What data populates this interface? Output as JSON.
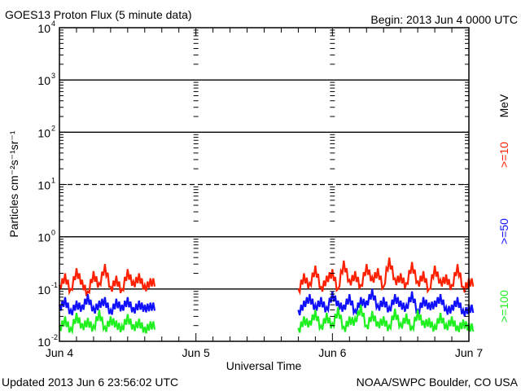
{
  "header": {
    "title": "GOES13 Proton Flux (5 minute data)",
    "begin": "Begin: 2013 Jun 4 0000 UTC"
  },
  "footer": {
    "updated": "Updated 2013 Jun  6 23:56:02 UTC",
    "source": "NOAA/SWPC Boulder, CO USA"
  },
  "chart_data": {
    "type": "line",
    "title": "GOES13 Proton Flux (5 minute data)",
    "xlabel": "Universal Time",
    "ylabel": "Particles cm⁻²s⁻¹sr⁻¹",
    "yscale": "log",
    "ylim": [
      0.01,
      10000
    ],
    "xlim_hours": [
      0,
      72
    ],
    "x_ticks": [
      "Jun 4",
      "Jun 5",
      "Jun 6",
      "Jun 7"
    ],
    "y_ticks": [
      {
        "base": "10",
        "exp": "4"
      },
      {
        "base": "10",
        "exp": "3"
      },
      {
        "base": "10",
        "exp": "2"
      },
      {
        "base": "10",
        "exp": "1"
      },
      {
        "base": "10",
        "exp": "0"
      },
      {
        "base": "10",
        "exp": "-1"
      },
      {
        "base": "10",
        "exp": "-2"
      }
    ],
    "units_label": "MeV",
    "series": [
      {
        "name": ">=10",
        "color": "#ff2000",
        "segments": [
          {
            "start_hour": 0,
            "values": [
              0.12,
              0.2,
              0.1,
              0.25,
              0.15,
              0.09,
              0.22,
              0.13,
              0.3,
              0.11,
              0.18,
              0.1,
              0.24,
              0.14,
              0.2,
              0.12,
              0.16
            ]
          },
          {
            "start_hour": 42,
            "values": [
              0.1,
              0.2,
              0.13,
              0.28,
              0.11,
              0.18,
              0.24,
              0.1,
              0.35,
              0.15,
              0.22,
              0.12,
              0.3,
              0.17,
              0.25,
              0.11,
              0.4,
              0.16,
              0.2,
              0.13,
              0.33,
              0.14,
              0.22,
              0.1,
              0.28,
              0.15,
              0.19,
              0.12,
              0.3,
              0.11,
              0.16
            ]
          }
        ]
      },
      {
        "name": ">=50",
        "color": "#1010ff",
        "segments": [
          {
            "start_hour": 0,
            "values": [
              0.05,
              0.07,
              0.04,
              0.06,
              0.05,
              0.08,
              0.045,
              0.06,
              0.07,
              0.04,
              0.065,
              0.05,
              0.07,
              0.045,
              0.06,
              0.05,
              0.055
            ]
          },
          {
            "start_hour": 42,
            "values": [
              0.04,
              0.06,
              0.08,
              0.05,
              0.07,
              0.045,
              0.09,
              0.06,
              0.05,
              0.08,
              0.04,
              0.07,
              0.06,
              0.1,
              0.05,
              0.07,
              0.045,
              0.08,
              0.06,
              0.05,
              0.09,
              0.04,
              0.07,
              0.055,
              0.06,
              0.08,
              0.045,
              0.05,
              0.07,
              0.04,
              0.05
            ]
          }
        ]
      },
      {
        "name": ">=100",
        "color": "#20f020",
        "segments": [
          {
            "start_hour": 0,
            "values": [
              0.02,
              0.03,
              0.018,
              0.035,
              0.022,
              0.028,
              0.02,
              0.04,
              0.019,
              0.03,
              0.025,
              0.02,
              0.033,
              0.021,
              0.027,
              0.019,
              0.024
            ]
          },
          {
            "start_hour": 42,
            "values": [
              0.018,
              0.03,
              0.025,
              0.04,
              0.02,
              0.035,
              0.022,
              0.045,
              0.019,
              0.03,
              0.028,
              0.05,
              0.02,
              0.038,
              0.024,
              0.03,
              0.02,
              0.042,
              0.022,
              0.034,
              0.019,
              0.04,
              0.025,
              0.028,
              0.02,
              0.035,
              0.021,
              0.03,
              0.02,
              0.026,
              0.022
            ]
          }
        ]
      }
    ],
    "reference_lines": {
      "solid": [
        1000,
        100,
        1,
        0.1
      ],
      "dashed": [
        10
      ]
    },
    "grid": false,
    "legend": "right-vertical"
  }
}
